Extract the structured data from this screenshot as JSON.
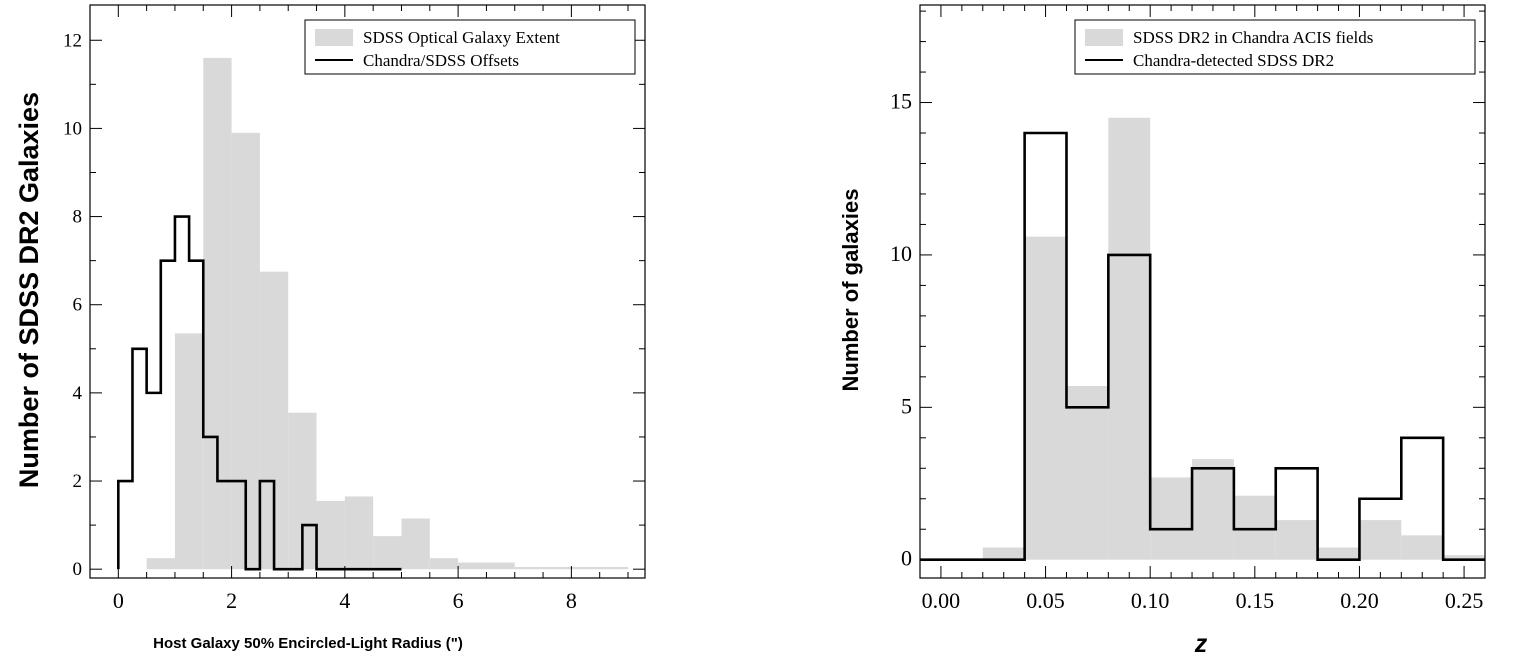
{
  "chart_data": [
    {
      "type": "histogram",
      "xlabel": "Host Galaxy 50% Encircled-Light Radius (\")",
      "ylabel": "Number of  SDSS DR2 Galaxies",
      "xlim": [
        -0.5,
        9.3
      ],
      "ylim": [
        -0.2,
        12.8
      ],
      "xticks": [
        0,
        2,
        4,
        6,
        8
      ],
      "xtick_labels": [
        "0",
        "2",
        "4",
        "6",
        "8"
      ],
      "yticks": [
        0,
        2,
        4,
        6,
        8,
        10,
        12
      ],
      "ytick_labels": [
        "0",
        "2",
        "4",
        "6",
        "8",
        "10",
        "12"
      ],
      "legend_position": "top-right",
      "series": [
        {
          "name": "SDSS Optical Galaxy Extent",
          "style": "filled",
          "color": "#d9d9d9",
          "bin_edges": [
            0,
            0.5,
            1.0,
            1.5,
            2.0,
            2.5,
            3.0,
            3.5,
            4.0,
            4.5,
            5.0,
            5.5,
            6.0,
            7.0,
            9.0
          ],
          "values": [
            0,
            0.25,
            5.35,
            11.6,
            9.9,
            6.75,
            3.55,
            1.55,
            1.65,
            0.75,
            1.15,
            0.25,
            0.15,
            0.05
          ]
        },
        {
          "name": "Chandra/SDSS Offsets",
          "style": "step",
          "color": "#000000",
          "bin_edges": [
            0,
            0.25,
            0.5,
            0.75,
            1.0,
            1.25,
            1.5,
            1.75,
            2.0,
            2.25,
            2.5,
            2.75,
            3.0,
            3.25,
            3.5,
            4.0,
            5.0
          ],
          "values": [
            2,
            5,
            4,
            7,
            8,
            7,
            3,
            2,
            2,
            0,
            2,
            0,
            0,
            1,
            0,
            0
          ]
        }
      ]
    },
    {
      "type": "histogram",
      "xlabel": "z",
      "ylabel": "Number of galaxies",
      "xlim": [
        -0.01,
        0.26
      ],
      "ylim": [
        -0.6,
        18.2
      ],
      "xticks": [
        0.0,
        0.05,
        0.1,
        0.15,
        0.2,
        0.25
      ],
      "xtick_labels": [
        "0.00",
        "0.05",
        "0.10",
        "0.15",
        "0.20",
        "0.25"
      ],
      "yticks": [
        0,
        5,
        10,
        15
      ],
      "ytick_labels": [
        "0",
        "5",
        "10",
        "15"
      ],
      "legend_position": "top-right",
      "series": [
        {
          "name": "SDSS DR2 in Chandra ACIS fields",
          "style": "filled",
          "color": "#d9d9d9",
          "bin_edges": [
            0,
            0.02,
            0.04,
            0.06,
            0.08,
            0.1,
            0.12,
            0.14,
            0.16,
            0.18,
            0.2,
            0.22,
            0.24,
            0.26
          ],
          "values": [
            0,
            0.4,
            10.6,
            5.7,
            14.5,
            2.7,
            3.3,
            2.1,
            1.3,
            0.4,
            1.3,
            0.8,
            0.15
          ]
        },
        {
          "name": "Chandra-detected SDSS DR2",
          "style": "step",
          "color": "#000000",
          "bin_edges": [
            -0.01,
            0.02,
            0.04,
            0.06,
            0.08,
            0.1,
            0.12,
            0.14,
            0.16,
            0.18,
            0.2,
            0.22,
            0.24,
            0.26
          ],
          "values": [
            0,
            0,
            14,
            5,
            10,
            1,
            3,
            1,
            3,
            0,
            2,
            4,
            0
          ]
        }
      ]
    }
  ]
}
